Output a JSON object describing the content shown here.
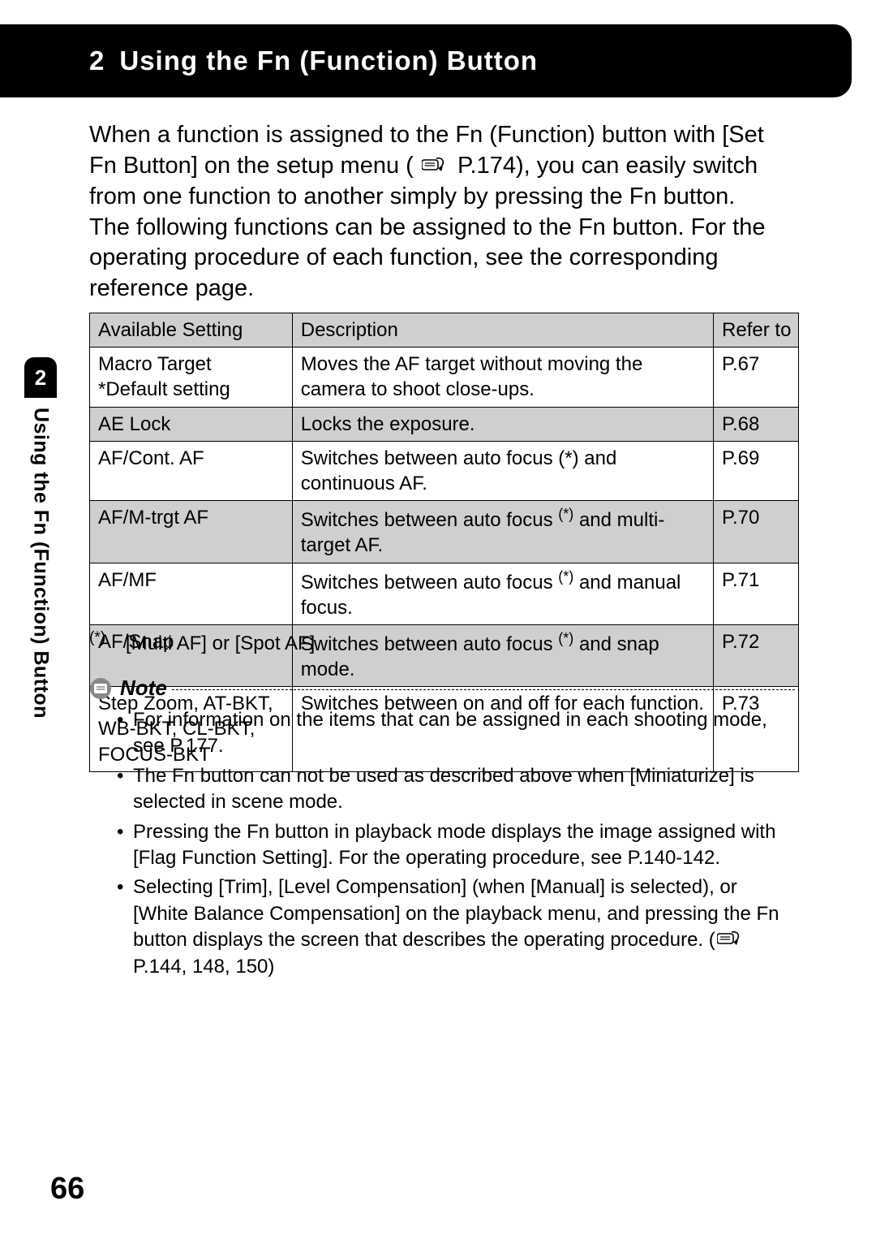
{
  "header": {
    "number": "2",
    "title": "Using the Fn (Function) Button"
  },
  "sidebar": {
    "number": "2",
    "label": "Using the Fn (Function) Button"
  },
  "intro": {
    "p1a": "When a function is assigned to the Fn (Function) button with [Set Fn Button] on the setup menu (",
    "p1b": " P.174), you can easily switch from one function to another simply by pressing the Fn button.",
    "p2": "The following functions can be assigned to the Fn button. For the operating procedure of each function, see the corresponding reference page."
  },
  "table": {
    "headers": [
      "Available Setting",
      "Description",
      "Refer to"
    ],
    "rows": [
      {
        "alt": false,
        "setting_lines": [
          "Macro Target",
          "*Default setting"
        ],
        "desc_pre": "Moves the AF target without moving the camera to shoot close-ups.",
        "desc_sup": "",
        "desc_post": "",
        "ref": "P.67"
      },
      {
        "alt": true,
        "setting_lines": [
          "AE Lock"
        ],
        "desc_pre": "Locks the exposure.",
        "desc_sup": "",
        "desc_post": "",
        "ref": "P.68"
      },
      {
        "alt": false,
        "setting_lines": [
          "AF/Cont. AF"
        ],
        "desc_pre": "Switches between auto focus (*) and continuous AF.",
        "desc_sup": "",
        "desc_post": "",
        "ref": "P.69"
      },
      {
        "alt": true,
        "setting_lines": [
          "AF/M-trgt AF"
        ],
        "desc_pre": "Switches between auto focus ",
        "desc_sup": "(*)",
        "desc_post": " and multi-target AF.",
        "ref": "P.70"
      },
      {
        "alt": false,
        "setting_lines": [
          "AF/MF"
        ],
        "desc_pre": "Switches between auto focus ",
        "desc_sup": "(*)",
        "desc_post": " and manual focus.",
        "ref": "P.71"
      },
      {
        "alt": true,
        "setting_lines": [
          "AF/Snap"
        ],
        "desc_pre": "Switches between auto focus ",
        "desc_sup": "(*)",
        "desc_post": " and snap mode.",
        "ref": "P.72"
      },
      {
        "alt": false,
        "setting_lines": [
          "Step Zoom, AT-BKT, WB-BKT, CL-BKT, FOCUS-BKT"
        ],
        "desc_pre": "Switches between on and off for each function.",
        "desc_sup": "",
        "desc_post": "",
        "ref": "P.73"
      }
    ]
  },
  "table_footnote": {
    "mark": "(*)",
    "text": "[Multi AF] or [Spot AF]"
  },
  "note": {
    "label": "Note",
    "items": [
      {
        "pre": "For information on the items that can be assigned in each shooting mode, see P.177.",
        "has_icon": false,
        "post": ""
      },
      {
        "pre": "The Fn button can not be used as described above when [Miniaturize] is selected in scene mode.",
        "has_icon": false,
        "post": ""
      },
      {
        "pre": "Pressing the Fn button in playback mode displays the image assigned with [Flag Function Setting]. For the operating procedure, see P.140-142.",
        "has_icon": false,
        "post": ""
      },
      {
        "pre": "Selecting [Trim], [Level Compensation] (when [Manual] is selected), or [White Balance Compensation] on the playback menu, and pressing the Fn button displays the screen that describes the operating procedure. (",
        "has_icon": true,
        "post": " P.144, 148, 150)"
      }
    ]
  },
  "page_number": "66"
}
